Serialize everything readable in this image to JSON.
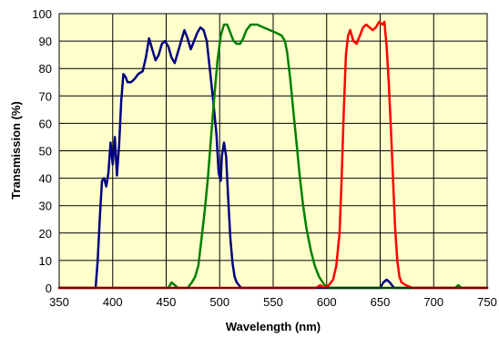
{
  "chart_data": {
    "type": "line",
    "title": "",
    "xlabel": "Wavelength (nm)",
    "ylabel": "Transmission (%)",
    "xlim": [
      350,
      750
    ],
    "ylim": [
      0,
      100
    ],
    "x_ticks": [
      350,
      400,
      450,
      500,
      550,
      600,
      650,
      700,
      750
    ],
    "y_ticks": [
      0,
      10,
      20,
      30,
      40,
      50,
      60,
      70,
      80,
      90,
      100
    ],
    "grid": true,
    "legend": "none",
    "colors": {
      "plot_background": "#ffffcc",
      "grid": "#000000"
    },
    "series": [
      {
        "color": "#000080",
        "points": [
          [
            350,
            0
          ],
          [
            384,
            0
          ],
          [
            386,
            10
          ],
          [
            388,
            26
          ],
          [
            390,
            39
          ],
          [
            392,
            40
          ],
          [
            394,
            37
          ],
          [
            396,
            42
          ],
          [
            398,
            53
          ],
          [
            400,
            45
          ],
          [
            402,
            55
          ],
          [
            404,
            41
          ],
          [
            406,
            52
          ],
          [
            408,
            68
          ],
          [
            410,
            78
          ],
          [
            412,
            77
          ],
          [
            414,
            75
          ],
          [
            417,
            75
          ],
          [
            420,
            76
          ],
          [
            424,
            78
          ],
          [
            428,
            79
          ],
          [
            431,
            84
          ],
          [
            434,
            91
          ],
          [
            437,
            87
          ],
          [
            440,
            83
          ],
          [
            443,
            85
          ],
          [
            446,
            89
          ],
          [
            449,
            90
          ],
          [
            452,
            88
          ],
          [
            455,
            84
          ],
          [
            458,
            82
          ],
          [
            461,
            86
          ],
          [
            464,
            90
          ],
          [
            467,
            94
          ],
          [
            470,
            91
          ],
          [
            473,
            87
          ],
          [
            476,
            90
          ],
          [
            479,
            93
          ],
          [
            482,
            95
          ],
          [
            485,
            94
          ],
          [
            488,
            90
          ],
          [
            491,
            79
          ],
          [
            494,
            68
          ],
          [
            497,
            56
          ],
          [
            499,
            42
          ],
          [
            501,
            39
          ],
          [
            502,
            48
          ],
          [
            504,
            53
          ],
          [
            506,
            48
          ],
          [
            508,
            32
          ],
          [
            510,
            18
          ],
          [
            512,
            9
          ],
          [
            514,
            4
          ],
          [
            516,
            2
          ],
          [
            520,
            0
          ],
          [
            650,
            0
          ],
          [
            653,
            2
          ],
          [
            656,
            3
          ],
          [
            659,
            2
          ],
          [
            663,
            0
          ],
          [
            750,
            0
          ]
        ]
      },
      {
        "color": "#008000",
        "points": [
          [
            350,
            0
          ],
          [
            452,
            0
          ],
          [
            455,
            2
          ],
          [
            458,
            1
          ],
          [
            461,
            0
          ],
          [
            470,
            0
          ],
          [
            474,
            2
          ],
          [
            477,
            4
          ],
          [
            480,
            8
          ],
          [
            483,
            18
          ],
          [
            486,
            28
          ],
          [
            489,
            40
          ],
          [
            492,
            55
          ],
          [
            495,
            70
          ],
          [
            498,
            83
          ],
          [
            501,
            92
          ],
          [
            504,
            96
          ],
          [
            507,
            96
          ],
          [
            510,
            93
          ],
          [
            513,
            90
          ],
          [
            516,
            89
          ],
          [
            519,
            89
          ],
          [
            522,
            91
          ],
          [
            525,
            94
          ],
          [
            529,
            96
          ],
          [
            535,
            96
          ],
          [
            541,
            95
          ],
          [
            547,
            94
          ],
          [
            553,
            93
          ],
          [
            558,
            92
          ],
          [
            561,
            90
          ],
          [
            563,
            86
          ],
          [
            566,
            76
          ],
          [
            569,
            64
          ],
          [
            572,
            52
          ],
          [
            575,
            40
          ],
          [
            578,
            30
          ],
          [
            581,
            22
          ],
          [
            585,
            14
          ],
          [
            589,
            8
          ],
          [
            593,
            4
          ],
          [
            598,
            1
          ],
          [
            603,
            0
          ],
          [
            720,
            0
          ],
          [
            723,
            1
          ],
          [
            726,
            0
          ],
          [
            750,
            0
          ]
        ]
      },
      {
        "color": "#ff0000",
        "points": [
          [
            350,
            0
          ],
          [
            590,
            0
          ],
          [
            594,
            1
          ],
          [
            598,
            0
          ],
          [
            602,
            1
          ],
          [
            606,
            3
          ],
          [
            609,
            8
          ],
          [
            612,
            20
          ],
          [
            614,
            40
          ],
          [
            616,
            65
          ],
          [
            618,
            85
          ],
          [
            620,
            92
          ],
          [
            622,
            94
          ],
          [
            625,
            90
          ],
          [
            628,
            89
          ],
          [
            631,
            92
          ],
          [
            634,
            95
          ],
          [
            637,
            96
          ],
          [
            640,
            95
          ],
          [
            643,
            94
          ],
          [
            646,
            95
          ],
          [
            649,
            97
          ],
          [
            652,
            96
          ],
          [
            654,
            97
          ],
          [
            656,
            88
          ],
          [
            658,
            75
          ],
          [
            660,
            58
          ],
          [
            662,
            40
          ],
          [
            664,
            22
          ],
          [
            666,
            10
          ],
          [
            668,
            4
          ],
          [
            670,
            2
          ],
          [
            674,
            1
          ],
          [
            680,
            0
          ],
          [
            750,
            0
          ]
        ]
      }
    ]
  }
}
